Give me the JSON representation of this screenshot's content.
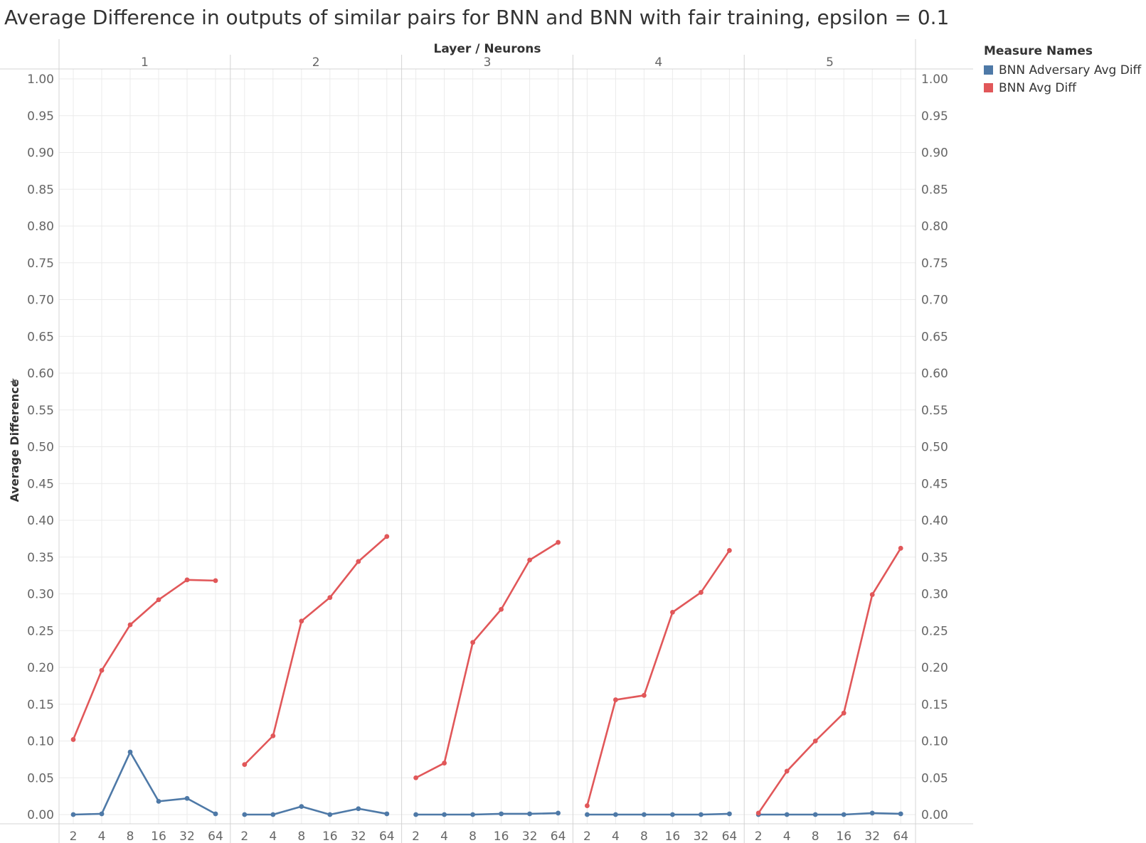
{
  "title": "Average Difference in outputs of similar pairs for BNN and BNN with fair training, epsilon = 0.1",
  "legend": {
    "title": "Measure Names"
  },
  "chart_data": {
    "type": "line",
    "title": "Average Difference in outputs of similar pairs for BNN and BNN with fair training, epsilon = 0.1",
    "column_header": "Layer / Neurons",
    "ylabel": "Average Difference",
    "ylim": [
      0,
      1.0
    ],
    "yticks": [
      "0.00",
      "0.05",
      "0.10",
      "0.15",
      "0.20",
      "0.25",
      "0.30",
      "0.35",
      "0.40",
      "0.45",
      "0.50",
      "0.55",
      "0.60",
      "0.65",
      "0.70",
      "0.75",
      "0.80",
      "0.85",
      "0.90",
      "0.95",
      "1.00"
    ],
    "panels": [
      "1",
      "2",
      "3",
      "4",
      "5"
    ],
    "x": [
      "2",
      "4",
      "8",
      "16",
      "32",
      "64"
    ],
    "grid": true,
    "legend_position": "top-right",
    "series": [
      {
        "name": "BNN Adversary Avg Diff",
        "color": "#4e79a7",
        "values": [
          [
            0.0,
            0.001,
            0.085,
            0.018,
            0.022,
            0.001
          ],
          [
            0.0,
            0.0,
            0.011,
            0.0,
            0.008,
            0.001
          ],
          [
            0.0,
            0.0,
            0.0,
            0.001,
            0.001,
            0.002
          ],
          [
            0.0,
            0.0,
            0.0,
            0.0,
            0.0,
            0.001
          ],
          [
            0.0,
            0.0,
            0.0,
            0.0,
            0.002,
            0.001
          ]
        ]
      },
      {
        "name": "BNN Avg Diff",
        "color": "#e15759",
        "values": [
          [
            0.102,
            0.196,
            0.258,
            0.292,
            0.319,
            0.318
          ],
          [
            0.068,
            0.107,
            0.263,
            0.295,
            0.344,
            0.378
          ],
          [
            0.05,
            0.07,
            0.234,
            0.279,
            0.346,
            0.37
          ],
          [
            0.012,
            0.156,
            0.162,
            0.275,
            0.302,
            0.359
          ],
          [
            0.002,
            0.059,
            0.1,
            0.138,
            0.299,
            0.362
          ]
        ]
      }
    ]
  }
}
